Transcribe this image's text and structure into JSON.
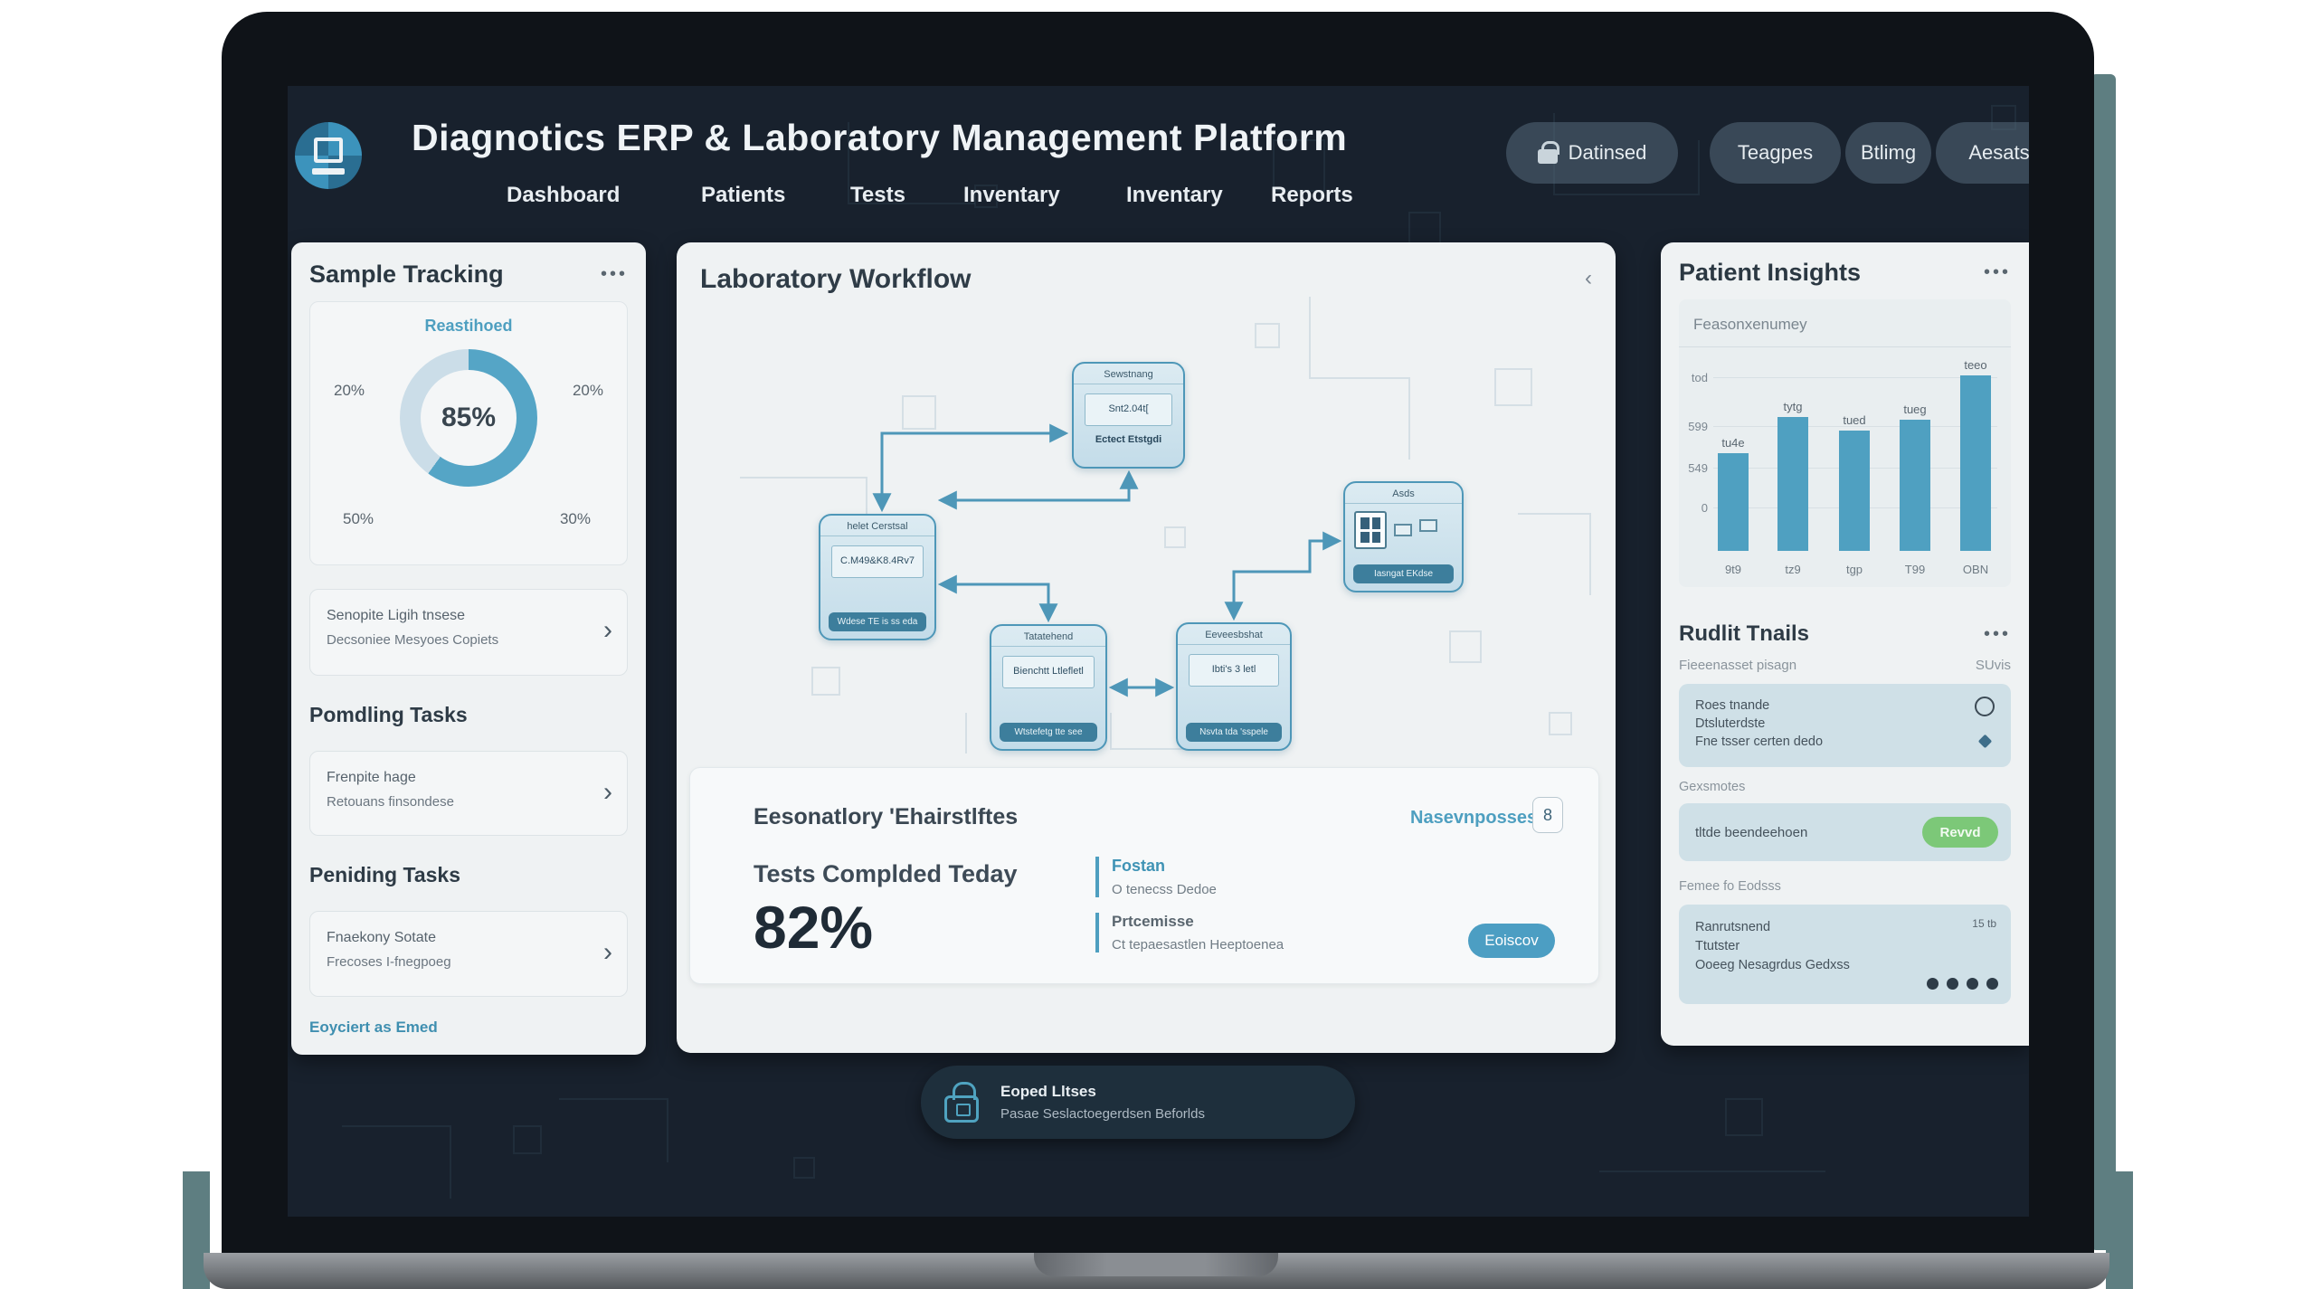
{
  "colors": {
    "accent": "#4FA0C1",
    "screen_bg": "#18212D",
    "panel_bg": "#EFF2F3",
    "node_border": "#4E97B8",
    "dark_bar": "#3D7E9C",
    "green": "#7CC878"
  },
  "header": {
    "title": "Diagnotics ERP & Laboratory Management Platform",
    "nav": [
      {
        "label": "Dashboard"
      },
      {
        "label": "Patients"
      },
      {
        "label": "Tests"
      },
      {
        "label": "Inventary"
      },
      {
        "label": "Inventary"
      },
      {
        "label": "Reports"
      }
    ],
    "actions": [
      {
        "label": "Datinsed"
      },
      {
        "label": "Teagpes"
      },
      {
        "label": "Btlimg"
      },
      {
        "label": "Aesats"
      }
    ]
  },
  "sample_tracking": {
    "title": "Sample Tracking",
    "menu": "•••",
    "cards": [
      {
        "line1": "Senopite Ligih tnsese",
        "line2": "Decsoniee Mesyoes Copiets"
      },
      {
        "line1": "Frenpite hage",
        "line2": "Retouans finsondese"
      },
      {
        "line1": "Fnaekony Sotate",
        "line2": "Frecoses I-fnegpoeg"
      }
    ],
    "section1": "Pomdling Tasks",
    "section2": "Peniding Tasks",
    "chevron": "›",
    "footer_link": "Eoyciert as Emed"
  },
  "workflow": {
    "title": "Laboratory Workflow",
    "collapse": "‹",
    "nodes": [
      {
        "title": "Sewstnang",
        "body": "Snt2.04t[",
        "footer": "Ectect Etstgdi"
      },
      {
        "title": "helet Cerstsal",
        "body": "C.M49&K8.4Rv7",
        "footer": "Wdese TE is ss eda"
      },
      {
        "title": "Tatatehend",
        "body": "Bienchtt Ltlefletl",
        "footer": "Wtstefetg tte see"
      },
      {
        "title": "Eeveesbshat",
        "body": "Ibti's 3 letl",
        "footer": "Nsvta tda 'sspele"
      },
      {
        "title": "Asds",
        "body": "",
        "footer": "Iasngat EKdse"
      }
    ],
    "stats": {
      "title": "Eesonatlory 'Ehairstlftes",
      "link": "Nasevnposses",
      "badge": "8",
      "metric_label": "Tests Complded Teday",
      "metric_value": "82%",
      "items": [
        {
          "label": "Fostan",
          "desc": "O tenecss Dedoe"
        },
        {
          "label": "Prtcemisse",
          "desc": "Ct tepaesastlen Heeptoenea"
        }
      ],
      "button": "Eoiscov"
    }
  },
  "patient_insights": {
    "title": "Patient Insights",
    "menu": "•••"
  },
  "audit": {
    "title": "Rudlit Tnails",
    "menu": "•••",
    "row_label": "Fieeenasset pisagn",
    "row_value": "SUvis",
    "card1_lines": [
      "Roes tnande",
      "Dtsluterdste",
      "Fne tsser certen dedo"
    ],
    "label1": "Gexsmotes",
    "card2_text": "tltde beendeehoen",
    "card2_button": "Revvd",
    "label2": "Femee fo Eodsss",
    "card3_lines": [
      "Ranrutsnend",
      "Ttutster",
      "Ooeeg Nesagrdus Gedxss"
    ],
    "card3_value": "15 tb"
  },
  "notification": {
    "line1": "Eoped Lltses",
    "line2": "Pasae Seslactoegerdsen Beforlds"
  },
  "chart_data": [
    {
      "type": "pie",
      "title": "Reastihoed",
      "labels": [
        "20%",
        "20%",
        "50%",
        "30%"
      ],
      "values": [
        20,
        20,
        50,
        30
      ],
      "center_label": "85%",
      "teal_sweep": 60,
      "colors": [
        "#55A5C6",
        "#CBDDE8"
      ],
      "legend_position": "none"
    },
    {
      "type": "bar",
      "title": "Feasonxenumey",
      "categories": [
        "9t9",
        "tz9",
        "tgp",
        "T99",
        "OBN"
      ],
      "values": [
        108,
        148,
        133,
        145,
        194
      ],
      "value_labels": [
        "tu4e",
        "tytg",
        "tued",
        "tueg",
        "teeo"
      ],
      "y_ticks": [
        "tod",
        "599",
        "549",
        "0"
      ],
      "ylim": [
        0,
        200
      ],
      "bar_color": "#4FA0C1",
      "grid": true
    }
  ]
}
